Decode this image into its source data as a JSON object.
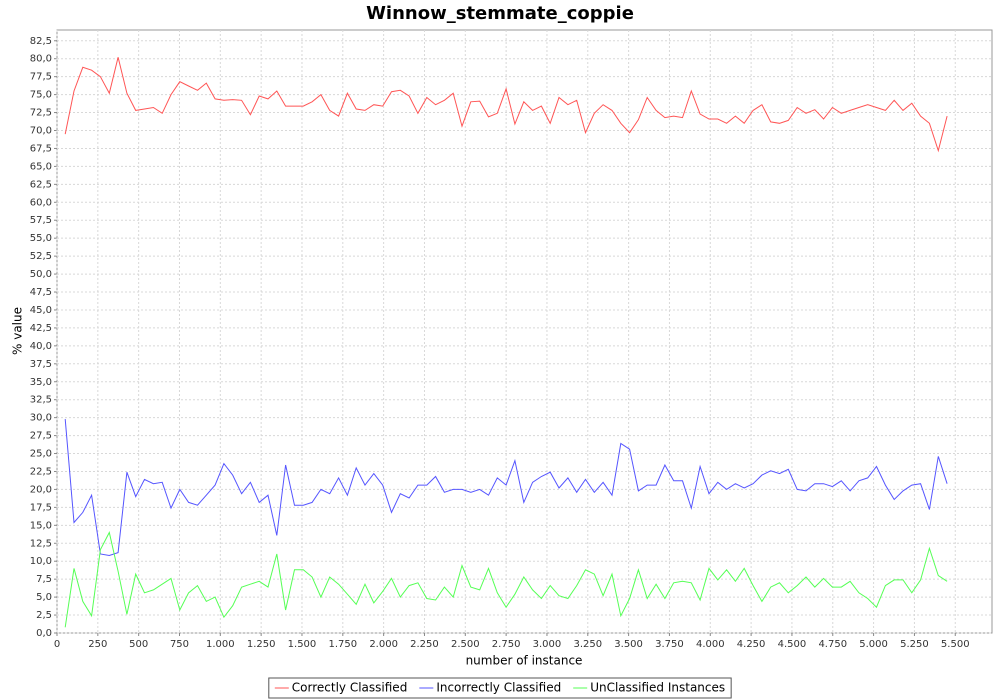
{
  "chart_data": {
    "type": "line",
    "title": "Winnow_stemmate_coppie",
    "x_label": "number of instance",
    "y_label": "% value",
    "x": [
      50,
      104,
      158,
      212,
      266,
      320,
      374,
      428,
      482,
      536,
      590,
      644,
      698,
      752,
      806,
      860,
      914,
      968,
      1022,
      1076,
      1130,
      1184,
      1238,
      1292,
      1346,
      1400,
      1454,
      1508,
      1562,
      1616,
      1670,
      1724,
      1778,
      1832,
      1886,
      1940,
      1994,
      2048,
      2102,
      2156,
      2210,
      2264,
      2318,
      2372,
      2426,
      2480,
      2534,
      2588,
      2642,
      2696,
      2750,
      2804,
      2858,
      2912,
      2966,
      3020,
      3074,
      3128,
      3182,
      3236,
      3290,
      3344,
      3398,
      3452,
      3506,
      3560,
      3614,
      3668,
      3722,
      3776,
      3830,
      3884,
      3938,
      3992,
      4046,
      4100,
      4154,
      4208,
      4262,
      4316,
      4370,
      4424,
      4478,
      4532,
      4586,
      4640,
      4694,
      4748,
      4802,
      4856,
      4910,
      4964,
      5018,
      5072,
      5126,
      5180,
      5234,
      5288,
      5342,
      5396,
      5450
    ],
    "series": [
      {
        "name": "Correctly Classified",
        "color": "#ff5555",
        "values": [
          69.5,
          75.5,
          78.8,
          78.4,
          77.5,
          75.2,
          80.2,
          75.2,
          72.8,
          73.0,
          73.2,
          72.4,
          75.0,
          76.8,
          76.2,
          75.6,
          76.6,
          74.4,
          74.2,
          74.3,
          74.2,
          72.2,
          74.8,
          74.4,
          75.5,
          73.4,
          73.4,
          73.4,
          74.0,
          75.0,
          72.8,
          72.0,
          75.2,
          73.0,
          72.8,
          73.6,
          73.4,
          75.4,
          75.6,
          74.8,
          72.4,
          74.6,
          73.6,
          74.2,
          75.2,
          70.6,
          74.0,
          74.1,
          71.9,
          72.4,
          75.8,
          70.9,
          74.0,
          72.8,
          73.4,
          71.0,
          74.6,
          73.6,
          74.2,
          69.7,
          72.4,
          73.6,
          72.8,
          71.0,
          69.7,
          71.5,
          74.6,
          72.8,
          71.8,
          72.0,
          71.8,
          75.5,
          72.3,
          71.6,
          71.6,
          71.0,
          72.0,
          71.0,
          72.8,
          73.6,
          71.2,
          71.0,
          71.4,
          73.2,
          72.4,
          72.9,
          71.6,
          73.2,
          72.4,
          72.8,
          73.2,
          73.6,
          73.2,
          72.8,
          74.2,
          72.8,
          73.8,
          72.0,
          71.0,
          67.2,
          72.0
        ]
      },
      {
        "name": "Incorrectly Classified",
        "color": "#5555ff",
        "values": [
          29.8,
          15.4,
          16.8,
          19.2,
          11.0,
          10.8,
          11.2,
          22.4,
          19.0,
          21.4,
          20.8,
          21.0,
          17.4,
          20.0,
          18.2,
          17.8,
          19.2,
          20.6,
          23.6,
          22.0,
          19.4,
          21.0,
          18.2,
          19.2,
          13.6,
          23.4,
          17.8,
          17.8,
          18.2,
          20.0,
          19.4,
          21.6,
          19.2,
          23.0,
          20.6,
          22.2,
          20.6,
          16.8,
          19.4,
          18.8,
          20.6,
          20.6,
          21.8,
          19.6,
          20.0,
          20.0,
          19.6,
          20.0,
          19.2,
          21.6,
          20.6,
          24.0,
          18.2,
          21.0,
          21.8,
          22.4,
          20.2,
          21.6,
          19.6,
          21.4,
          19.6,
          21.0,
          19.2,
          26.4,
          25.6,
          19.8,
          20.6,
          20.6,
          23.4,
          21.2,
          21.2,
          17.4,
          23.2,
          19.4,
          21.0,
          20.0,
          20.8,
          20.2,
          20.8,
          22.0,
          22.6,
          22.2,
          22.8,
          20.0,
          19.8,
          20.8,
          20.8,
          20.4,
          21.2,
          19.8,
          21.2,
          21.6,
          23.2,
          20.6,
          18.6,
          19.8,
          20.6,
          20.8,
          17.2,
          24.6,
          20.8
        ]
      },
      {
        "name": "UnClassified Instances",
        "color": "#55ff55",
        "values": [
          0.8,
          9.0,
          4.4,
          2.4,
          11.6,
          14.0,
          8.6,
          2.6,
          8.2,
          5.6,
          6.0,
          6.8,
          7.6,
          3.2,
          5.6,
          6.6,
          4.4,
          5.0,
          2.2,
          3.8,
          6.4,
          6.8,
          7.2,
          6.4,
          11.0,
          3.2,
          8.8,
          8.8,
          7.8,
          5.0,
          7.8,
          6.8,
          5.4,
          4.0,
          6.8,
          4.2,
          5.8,
          7.6,
          5.0,
          6.6,
          7.0,
          4.8,
          4.6,
          6.4,
          5.0,
          9.4,
          6.4,
          6.0,
          9.0,
          5.6,
          3.6,
          5.4,
          7.8,
          6.0,
          4.8,
          6.6,
          5.2,
          4.8,
          6.6,
          8.8,
          8.2,
          5.2,
          8.2,
          2.4,
          4.8,
          8.8,
          4.8,
          6.8,
          4.8,
          7.0,
          7.2,
          7.0,
          4.6,
          9.0,
          7.4,
          8.8,
          7.2,
          9.0,
          6.6,
          4.4,
          6.4,
          7.0,
          5.6,
          6.6,
          7.8,
          6.4,
          7.6,
          6.4,
          6.4,
          7.2,
          5.6,
          4.8,
          3.6,
          6.6,
          7.4,
          7.4,
          5.6,
          7.4,
          11.8,
          8.0,
          7.2
        ]
      }
    ],
    "xlim": [
      0,
      5725
    ],
    "ylim": [
      0,
      84
    ],
    "xticks": [
      0,
      250,
      500,
      750,
      {
        "value": 1000,
        "label": "1.000"
      },
      {
        "value": 1250,
        "label": "1.250"
      },
      {
        "value": 1500,
        "label": "1.500"
      },
      {
        "value": 1750,
        "label": "1.750"
      },
      {
        "value": 2000,
        "label": "2.000"
      },
      {
        "value": 2250,
        "label": "2.250"
      },
      {
        "value": 2500,
        "label": "2.500"
      },
      {
        "value": 2750,
        "label": "2.750"
      },
      {
        "value": 3000,
        "label": "3.000"
      },
      {
        "value": 3250,
        "label": "3.250"
      },
      {
        "value": 3500,
        "label": "3.500"
      },
      {
        "value": 3750,
        "label": "3.750"
      },
      {
        "value": 4000,
        "label": "4.000"
      },
      {
        "value": 4250,
        "label": "4.250"
      },
      {
        "value": 4500,
        "label": "4.500"
      },
      {
        "value": 4750,
        "label": "4.750"
      },
      {
        "value": 5000,
        "label": "5.000"
      },
      {
        "value": 5250,
        "label": "5.250"
      },
      {
        "value": 5500,
        "label": "5.500"
      }
    ],
    "yticks": [
      {
        "value": 0,
        "label": "0,0"
      },
      {
        "value": 2.5,
        "label": "2,5"
      },
      {
        "value": 5,
        "label": "5,0"
      },
      {
        "value": 7.5,
        "label": "7,5"
      },
      {
        "value": 10,
        "label": "10,0"
      },
      {
        "value": 12.5,
        "label": "12,5"
      },
      {
        "value": 15,
        "label": "15,0"
      },
      {
        "value": 17.5,
        "label": "17,5"
      },
      {
        "value": 20,
        "label": "20,0"
      },
      {
        "value": 22.5,
        "label": "22,5"
      },
      {
        "value": 25,
        "label": "25,0"
      },
      {
        "value": 27.5,
        "label": "27,5"
      },
      {
        "value": 30,
        "label": "30,0"
      },
      {
        "value": 32.5,
        "label": "32,5"
      },
      {
        "value": 35,
        "label": "35,0"
      },
      {
        "value": 37.5,
        "label": "37,5"
      },
      {
        "value": 40,
        "label": "40,0"
      },
      {
        "value": 42.5,
        "label": "42,5"
      },
      {
        "value": 45,
        "label": "45,0"
      },
      {
        "value": 47.5,
        "label": "47,5"
      },
      {
        "value": 50,
        "label": "50,0"
      },
      {
        "value": 52.5,
        "label": "52,5"
      },
      {
        "value": 55,
        "label": "55,0"
      },
      {
        "value": 57.5,
        "label": "57,5"
      },
      {
        "value": 60,
        "label": "60,0"
      },
      {
        "value": 62.5,
        "label": "62,5"
      },
      {
        "value": 65,
        "label": "65,0"
      },
      {
        "value": 67.5,
        "label": "67,5"
      },
      {
        "value": 70,
        "label": "70,0"
      },
      {
        "value": 72.5,
        "label": "72,5"
      },
      {
        "value": 75,
        "label": "75,0"
      },
      {
        "value": 77.5,
        "label": "77,5"
      },
      {
        "value": 80,
        "label": "80,0"
      },
      {
        "value": 82.5,
        "label": "82,5"
      }
    ],
    "grid": true,
    "legend": "bottom"
  }
}
